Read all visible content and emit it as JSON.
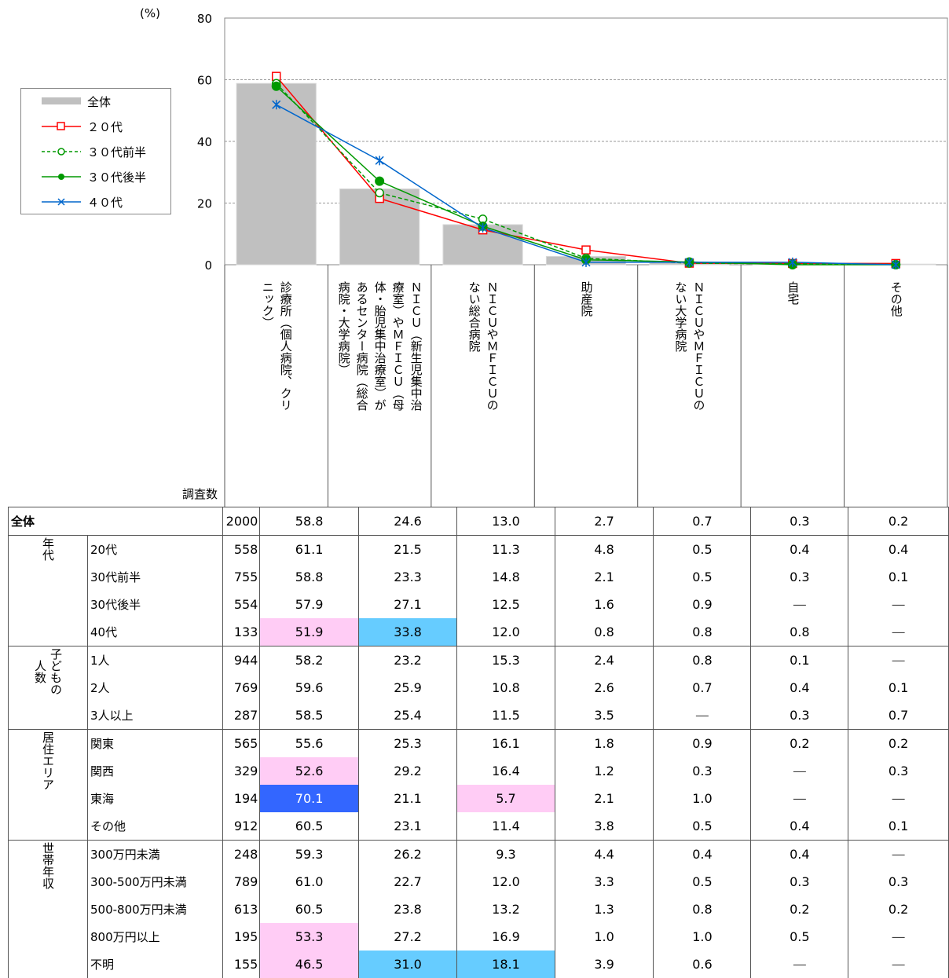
{
  "axis": {
    "unit_label": "(%)",
    "ticks": [
      "80",
      "60",
      "40",
      "20",
      "0"
    ]
  },
  "legend": [
    {
      "label": "全体",
      "key": "all"
    },
    {
      "label": "２０代",
      "key": "s20"
    },
    {
      "label": "３０代前半",
      "key": "s30a"
    },
    {
      "label": "３０代後半",
      "key": "s30b"
    },
    {
      "label": "４０代",
      "key": "s40"
    }
  ],
  "categories": [
    "診療所（個人病院、クリニック）",
    "ＮＩＣＵ（新生児集中治療室）やＭＦＩＣＵ（母体・胎児集中治療室）があるセンター病院（総合病院・大学病院）",
    "ＮＩＣＵやＭＦＩＣＵのない総合病院",
    "助産院",
    "ＮＩＣＵやＭＦＩＣＵのない大学病院",
    "自宅",
    "その他"
  ],
  "category_label_columns": [
    [
      "診療所（個人病院、クリ",
      "ニック）"
    ],
    [
      "ＮＩＣＵ（新生児集中治",
      "療室）やＭＦＩＣＵ（母",
      "体・胎児集中治療室）が",
      "あるセンター病院（総合",
      "病院・大学病院）"
    ],
    [
      "ＮＩＣＵやＭＦＩＣＵの",
      "ない総合病院"
    ],
    [
      "助産院"
    ],
    [
      "ＮＩＣＵやＭＦＩＣＵの",
      "ない大学病院"
    ],
    [
      "自宅"
    ],
    [
      "その他"
    ]
  ],
  "chart_data": {
    "type": "bar",
    "ylim": [
      0,
      80
    ],
    "yticks": [
      0,
      20,
      40,
      60,
      80
    ],
    "ylabel": "(%)",
    "grid": true,
    "categories": [
      "診療所（個人病院、クリニック）",
      "ＮＩＣＵ（新生児集中治療室）やＭＦＩＣＵ（母体・胎児集中治療室）があるセンター病院（総合病院・大学病院）",
      "ＮＩＣＵやＭＦＩＣＵのない総合病院",
      "助産院",
      "ＮＩＣＵやＭＦＩＣＵのない大学病院",
      "自宅",
      "その他"
    ],
    "series": [
      {
        "name": "全体",
        "kind": "bar",
        "values": [
          58.8,
          24.6,
          13.0,
          2.7,
          0.7,
          0.3,
          0.2
        ],
        "color": "#c0c0c0"
      },
      {
        "name": "２０代",
        "kind": "line",
        "marker": "square",
        "values": [
          61.1,
          21.5,
          11.3,
          4.8,
          0.5,
          0.4,
          0.4
        ],
        "color": "#ff0000"
      },
      {
        "name": "３０代前半",
        "kind": "line",
        "marker": "circle-open",
        "dashed": true,
        "values": [
          58.8,
          23.3,
          14.8,
          2.1,
          0.5,
          0.3,
          0.1
        ],
        "color": "#009900"
      },
      {
        "name": "３０代後半",
        "kind": "line",
        "marker": "circle-filled",
        "values": [
          57.9,
          27.1,
          12.5,
          1.6,
          0.9,
          0.0,
          0.0
        ],
        "color": "#009900"
      },
      {
        "name": "４０代",
        "kind": "line",
        "marker": "star",
        "values": [
          51.9,
          33.8,
          12.0,
          0.8,
          0.8,
          0.8,
          0.0
        ],
        "color": "#0066cc"
      }
    ]
  },
  "table": {
    "n_header": "調査数",
    "total": {
      "label": "全体",
      "n": "2000",
      "values": [
        "58.8",
        "24.6",
        "13.0",
        "2.7",
        "0.7",
        "0.3",
        "0.2"
      ]
    },
    "groups": [
      {
        "label": "年代",
        "rows": [
          {
            "label": "20代",
            "n": "558",
            "values": [
              "61.1",
              "21.5",
              "11.3",
              "4.8",
              "0.5",
              "0.4",
              "0.4"
            ],
            "hl": [
              "",
              "",
              "",
              "",
              "",
              "",
              ""
            ]
          },
          {
            "label": "30代前半",
            "n": "755",
            "values": [
              "58.8",
              "23.3",
              "14.8",
              "2.1",
              "0.5",
              "0.3",
              "0.1"
            ],
            "hl": [
              "",
              "",
              "",
              "",
              "",
              "",
              ""
            ]
          },
          {
            "label": "30代後半",
            "n": "554",
            "values": [
              "57.9",
              "27.1",
              "12.5",
              "1.6",
              "0.9",
              "―",
              "―"
            ],
            "hl": [
              "",
              "",
              "",
              "",
              "",
              "",
              ""
            ]
          },
          {
            "label": "40代",
            "n": "133",
            "values": [
              "51.9",
              "33.8",
              "12.0",
              "0.8",
              "0.8",
              "0.8",
              "―"
            ],
            "hl": [
              "pink",
              "lblue",
              "",
              "",
              "",
              "",
              ""
            ]
          }
        ]
      },
      {
        "label": "子どもの人数",
        "label_cols": [
          "子どもの",
          "人数"
        ],
        "rows": [
          {
            "label": "1人",
            "n": "944",
            "values": [
              "58.2",
              "23.2",
              "15.3",
              "2.4",
              "0.8",
              "0.1",
              "―"
            ],
            "hl": [
              "",
              "",
              "",
              "",
              "",
              "",
              ""
            ]
          },
          {
            "label": "2人",
            "n": "769",
            "values": [
              "59.6",
              "25.9",
              "10.8",
              "2.6",
              "0.7",
              "0.4",
              "0.1"
            ],
            "hl": [
              "",
              "",
              "",
              "",
              "",
              "",
              ""
            ]
          },
          {
            "label": "3人以上",
            "n": "287",
            "values": [
              "58.5",
              "25.4",
              "11.5",
              "3.5",
              "―",
              "0.3",
              "0.7"
            ],
            "hl": [
              "",
              "",
              "",
              "",
              "",
              "",
              ""
            ]
          }
        ]
      },
      {
        "label": "居住エリア",
        "rows": [
          {
            "label": "関東",
            "n": "565",
            "values": [
              "55.6",
              "25.3",
              "16.1",
              "1.8",
              "0.9",
              "0.2",
              "0.2"
            ],
            "hl": [
              "",
              "",
              "",
              "",
              "",
              "",
              ""
            ]
          },
          {
            "label": "関西",
            "n": "329",
            "values": [
              "52.6",
              "29.2",
              "16.4",
              "1.2",
              "0.3",
              "―",
              "0.3"
            ],
            "hl": [
              "pink",
              "",
              "",
              "",
              "",
              "",
              ""
            ]
          },
          {
            "label": "東海",
            "n": "194",
            "values": [
              "70.1",
              "21.1",
              "5.7",
              "2.1",
              "1.0",
              "―",
              "―"
            ],
            "hl": [
              "blue",
              "",
              "pink",
              "",
              "",
              "",
              ""
            ]
          },
          {
            "label": "その他",
            "n": "912",
            "values": [
              "60.5",
              "23.1",
              "11.4",
              "3.8",
              "0.5",
              "0.4",
              "0.1"
            ],
            "hl": [
              "",
              "",
              "",
              "",
              "",
              "",
              ""
            ]
          }
        ]
      },
      {
        "label": "世帯年収",
        "rows": [
          {
            "label": "300万円未満",
            "n": "248",
            "values": [
              "59.3",
              "26.2",
              "9.3",
              "4.4",
              "0.4",
              "0.4",
              "―"
            ],
            "hl": [
              "",
              "",
              "",
              "",
              "",
              "",
              ""
            ]
          },
          {
            "label": "300-500万円未満",
            "n": "789",
            "values": [
              "61.0",
              "22.7",
              "12.0",
              "3.3",
              "0.5",
              "0.3",
              "0.3"
            ],
            "hl": [
              "",
              "",
              "",
              "",
              "",
              "",
              ""
            ]
          },
          {
            "label": "500-800万円未満",
            "n": "613",
            "values": [
              "60.5",
              "23.8",
              "13.2",
              "1.3",
              "0.8",
              "0.2",
              "0.2"
            ],
            "hl": [
              "",
              "",
              "",
              "",
              "",
              "",
              ""
            ]
          },
          {
            "label": "800万円以上",
            "n": "195",
            "values": [
              "53.3",
              "27.2",
              "16.9",
              "1.0",
              "1.0",
              "0.5",
              "―"
            ],
            "hl": [
              "pink",
              "",
              "",
              "",
              "",
              "",
              ""
            ]
          },
          {
            "label": "不明",
            "n": "155",
            "values": [
              "46.5",
              "31.0",
              "18.1",
              "3.9",
              "0.6",
              "―",
              "―"
            ],
            "hl": [
              "pink",
              "lblue",
              "lblue",
              "",
              "",
              "",
              ""
            ]
          }
        ]
      }
    ]
  }
}
